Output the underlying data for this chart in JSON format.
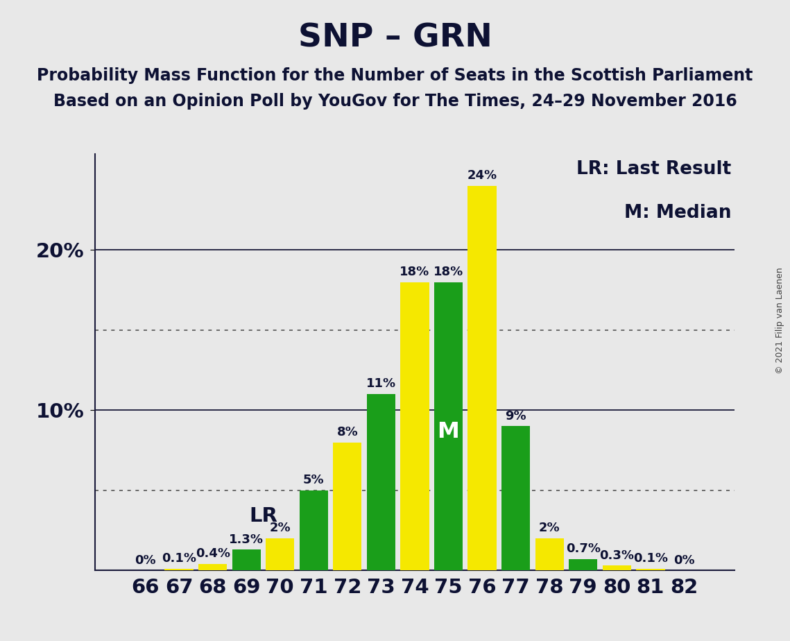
{
  "title": "SNP – GRN",
  "subtitle1": "Probability Mass Function for the Number of Seats in the Scottish Parliament",
  "subtitle2": "Based on an Opinion Poll by YouGov for The Times, 24–29 November 2016",
  "copyright": "© 2021 Filip van Laenen",
  "seats": [
    66,
    67,
    68,
    69,
    70,
    71,
    72,
    73,
    74,
    75,
    76,
    77,
    78,
    79,
    80,
    81,
    82
  ],
  "values": [
    0.0,
    0.1,
    0.4,
    1.3,
    2.0,
    5.0,
    8.0,
    11.0,
    18.0,
    18.0,
    24.0,
    9.0,
    2.0,
    0.7,
    0.3,
    0.1,
    0.0
  ],
  "labels": [
    "0%",
    "0.1%",
    "0.4%",
    "1.3%",
    "2%",
    "5%",
    "8%",
    "11%",
    "18%",
    "18%",
    "24%",
    "9%",
    "2%",
    "0.7%",
    "0.3%",
    "0.1%",
    "0%"
  ],
  "colors": [
    "#f5e800",
    "#f5e800",
    "#f5e800",
    "#1a9e1a",
    "#f5e800",
    "#1a9e1a",
    "#f5e800",
    "#1a9e1a",
    "#f5e800",
    "#1a9e1a",
    "#f5e800",
    "#1a9e1a",
    "#f5e800",
    "#1a9e1a",
    "#f5e800",
    "#f5e800",
    "#f5e800"
  ],
  "lr_seat": 69,
  "median_seat": 75,
  "ylim": [
    0,
    26
  ],
  "solid_gridlines": [
    10.0,
    20.0
  ],
  "dotted_gridlines": [
    5.0,
    15.0
  ],
  "background_color": "#e8e8e8",
  "bar_width": 0.85,
  "legend_lr": "LR: Last Result",
  "legend_m": "M: Median",
  "title_fontsize": 34,
  "subtitle_fontsize": 17,
  "label_fontsize": 13,
  "axis_fontsize": 21,
  "ytick_fontsize": 21,
  "legend_fontsize": 19,
  "copyright_fontsize": 9,
  "text_color": "#0d1133"
}
